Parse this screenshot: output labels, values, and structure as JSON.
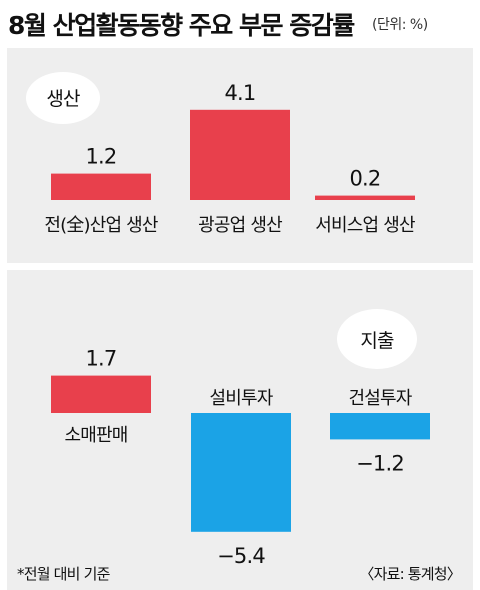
{
  "title": "8월 산업활동동향 주요 부문 증감률",
  "unit": "(단위: %)",
  "footnote": "*전월 대비 기준",
  "source": "〈자료: 통계청〉",
  "colors": {
    "positive": "#e8404c",
    "negative": "#1ba3e6",
    "panel": "#eeeeee"
  },
  "chart_data": [
    {
      "type": "bar",
      "title": "생산",
      "categories": [
        "전(全)산업 생산",
        "광공업 생산",
        "서비스업 생산"
      ],
      "values": [
        1.2,
        4.1,
        0.2
      ],
      "value_labels": [
        "1.2",
        "4.1",
        "0.2"
      ]
    },
    {
      "type": "bar",
      "title": "지출",
      "categories": [
        "소매판매",
        "설비투자",
        "건설투자"
      ],
      "values": [
        1.7,
        -5.4,
        -1.2
      ],
      "value_labels": [
        "1.7",
        "−5.4",
        "−1.2"
      ]
    }
  ]
}
